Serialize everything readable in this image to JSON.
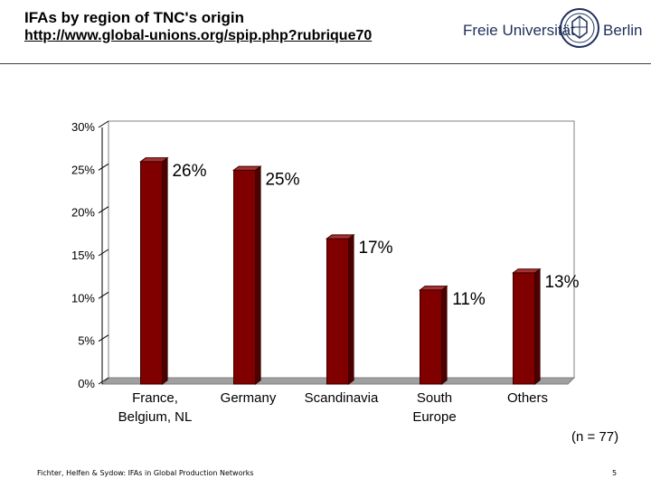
{
  "slide": {
    "title": "IFAs by region of TNC's origin",
    "url": "http://www.global-unions.org/spip.php?rubrique70"
  },
  "logo": {
    "left_text": "Freie Universität",
    "right_text": "Berlin",
    "color": "#1f2f5a"
  },
  "chart_data": {
    "type": "bar",
    "categories": [
      [
        "France,",
        "Belgium, NL"
      ],
      [
        "Germany"
      ],
      [
        "Scandinavia"
      ],
      [
        "South",
        "Europe"
      ],
      [
        "Others"
      ]
    ],
    "values": [
      26,
      25,
      17,
      11,
      13
    ],
    "data_labels": [
      "26%",
      "25%",
      "17%",
      "11%",
      "13%"
    ],
    "y_ticks": [
      "0%",
      "5%",
      "10%",
      "15%",
      "20%",
      "25%",
      "30%"
    ],
    "ylim": [
      0,
      30
    ],
    "grid": false,
    "bar_color": "#800000",
    "title": "",
    "xlabel": "",
    "ylabel": ""
  },
  "note": "(n = 77)",
  "footer": {
    "text": "Fichter, Helfen & Sydow: IFAs in Global Production Networks",
    "page": "5"
  }
}
